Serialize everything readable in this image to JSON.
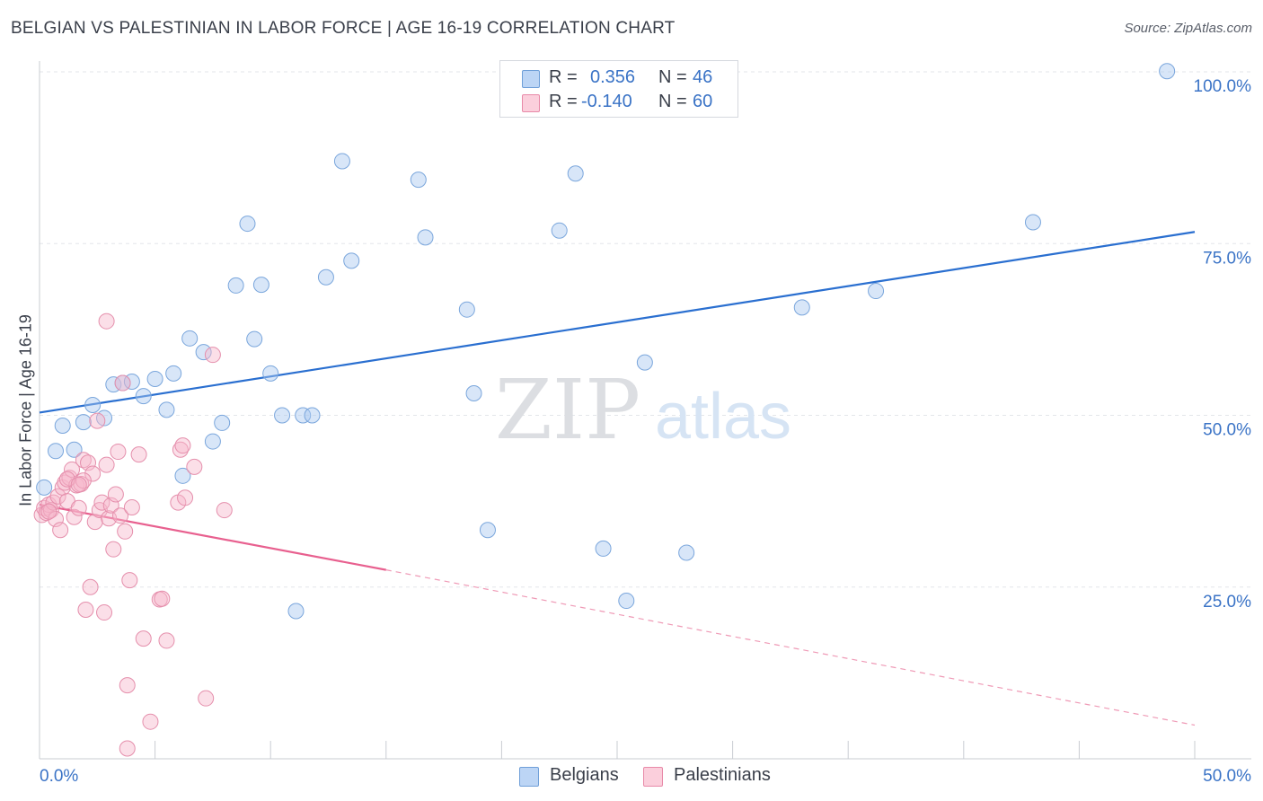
{
  "header": {
    "title": "BELGIAN VS PALESTINIAN IN LABOR FORCE | AGE 16-19 CORRELATION CHART",
    "source": "Source: ZipAtlas.com"
  },
  "legend": {
    "r_label": "R =",
    "n_label": "N =",
    "series": [
      {
        "name": "Belgians",
        "r": "0.356",
        "n": "46",
        "color": "#a8c8f0",
        "stroke": "#6f9fd8"
      },
      {
        "name": "Palestinians",
        "r": "-0.140",
        "n": "60",
        "color": "#f7b8cb",
        "stroke": "#e889a8"
      }
    ]
  },
  "watermark": {
    "part1": "ZIP",
    "part2": "atlas"
  },
  "colors": {
    "blue_line": "#2a6fd0",
    "pink_line": "#e8608f",
    "axis_text": "#3a73c6",
    "grid": "#e3e6ea"
  },
  "chart_data": {
    "type": "scatter",
    "title": "BELGIAN VS PALESTINIAN IN LABOR FORCE | AGE 16-19 CORRELATION CHART",
    "xlabel": "",
    "ylabel": "In Labor Force | Age 16-19",
    "xlim": [
      0,
      50
    ],
    "ylim": [
      0,
      102
    ],
    "x_tick_labels": [
      {
        "value": 0,
        "label": "0.0%"
      },
      {
        "value": 50,
        "label": "50.0%"
      }
    ],
    "y_tick_labels": [
      {
        "value": 25,
        "label": "25.0%"
      },
      {
        "value": 50,
        "label": "50.0%"
      },
      {
        "value": 75,
        "label": "75.0%"
      },
      {
        "value": 100,
        "label": "100.0%"
      }
    ],
    "grid": true,
    "series": [
      {
        "name": "Belgians",
        "r": 0.356,
        "n": 46,
        "trend": {
          "x": [
            0,
            50
          ],
          "y": [
            50.4,
            76.7
          ]
        },
        "points": [
          [
            0.2,
            39.5
          ],
          [
            0.7,
            44.8
          ],
          [
            1.0,
            48.5
          ],
          [
            1.5,
            45.0
          ],
          [
            1.9,
            49.0
          ],
          [
            2.3,
            51.5
          ],
          [
            2.8,
            49.6
          ],
          [
            3.2,
            54.5
          ],
          [
            3.6,
            54.7
          ],
          [
            4.0,
            54.9
          ],
          [
            4.5,
            52.8
          ],
          [
            5.0,
            55.3
          ],
          [
            5.5,
            50.8
          ],
          [
            5.8,
            56.1
          ],
          [
            6.2,
            41.2
          ],
          [
            6.5,
            61.2
          ],
          [
            7.1,
            59.2
          ],
          [
            7.5,
            46.2
          ],
          [
            7.9,
            48.9
          ],
          [
            8.5,
            68.9
          ],
          [
            9.0,
            77.9
          ],
          [
            9.3,
            61.1
          ],
          [
            9.6,
            69.0
          ],
          [
            10.0,
            56.1
          ],
          [
            10.5,
            50.0
          ],
          [
            11.1,
            21.5
          ],
          [
            11.4,
            50.0
          ],
          [
            11.8,
            50.0
          ],
          [
            12.4,
            70.1
          ],
          [
            13.1,
            87.0
          ],
          [
            13.5,
            72.5
          ],
          [
            16.4,
            84.3
          ],
          [
            16.7,
            75.9
          ],
          [
            18.5,
            65.4
          ],
          [
            18.8,
            53.2
          ],
          [
            19.4,
            33.3
          ],
          [
            22.5,
            76.9
          ],
          [
            23.2,
            85.2
          ],
          [
            24.4,
            30.6
          ],
          [
            25.4,
            23.0
          ],
          [
            26.2,
            57.7
          ],
          [
            28.0,
            30.0
          ],
          [
            33.0,
            65.7
          ],
          [
            36.2,
            68.1
          ],
          [
            43.0,
            78.1
          ],
          [
            48.8,
            100.1
          ]
        ]
      },
      {
        "name": "Palestinians",
        "r": -0.14,
        "n": 60,
        "trend": {
          "x": [
            0,
            15
          ],
          "y": [
            37.0,
            27.5
          ]
        },
        "trend_extension": {
          "x": [
            15,
            50
          ],
          "y": [
            27.5,
            4.9
          ]
        },
        "points": [
          [
            0.1,
            35.5
          ],
          [
            0.2,
            36.5
          ],
          [
            0.3,
            35.8
          ],
          [
            0.4,
            37.0
          ],
          [
            0.5,
            36.2
          ],
          [
            0.6,
            37.3
          ],
          [
            0.7,
            34.9
          ],
          [
            0.8,
            38.2
          ],
          [
            0.9,
            33.3
          ],
          [
            1.0,
            39.5
          ],
          [
            1.1,
            40.2
          ],
          [
            1.2,
            37.5
          ],
          [
            1.3,
            40.9
          ],
          [
            1.4,
            42.1
          ],
          [
            1.5,
            35.2
          ],
          [
            1.6,
            39.8
          ],
          [
            1.7,
            36.5
          ],
          [
            1.8,
            40.0
          ],
          [
            1.9,
            43.5
          ],
          [
            2.0,
            21.7
          ],
          [
            2.1,
            43.1
          ],
          [
            2.2,
            25.0
          ],
          [
            2.3,
            41.5
          ],
          [
            2.4,
            34.5
          ],
          [
            2.5,
            49.2
          ],
          [
            2.6,
            36.2
          ],
          [
            2.7,
            37.3
          ],
          [
            2.8,
            21.3
          ],
          [
            2.9,
            42.8
          ],
          [
            3.0,
            35.0
          ],
          [
            3.1,
            36.9
          ],
          [
            3.2,
            30.5
          ],
          [
            3.3,
            38.5
          ],
          [
            3.4,
            44.7
          ],
          [
            3.5,
            35.4
          ],
          [
            3.6,
            54.7
          ],
          [
            3.7,
            33.1
          ],
          [
            3.8,
            10.7
          ],
          [
            3.9,
            26.0
          ],
          [
            4.0,
            36.6
          ],
          [
            4.3,
            44.3
          ],
          [
            4.5,
            17.5
          ],
          [
            4.8,
            5.4
          ],
          [
            5.2,
            23.2
          ],
          [
            5.5,
            17.2
          ],
          [
            6.0,
            37.3
          ],
          [
            6.3,
            38.0
          ],
          [
            6.7,
            42.5
          ],
          [
            7.2,
            8.8
          ],
          [
            7.5,
            58.8
          ],
          [
            8.0,
            36.2
          ],
          [
            2.9,
            63.7
          ],
          [
            1.9,
            40.5
          ],
          [
            1.2,
            40.7
          ],
          [
            0.4,
            36.0
          ],
          [
            6.1,
            45.0
          ],
          [
            5.3,
            23.3
          ],
          [
            3.8,
            1.5
          ],
          [
            6.2,
            45.6
          ],
          [
            1.7,
            39.9
          ]
        ]
      }
    ]
  }
}
